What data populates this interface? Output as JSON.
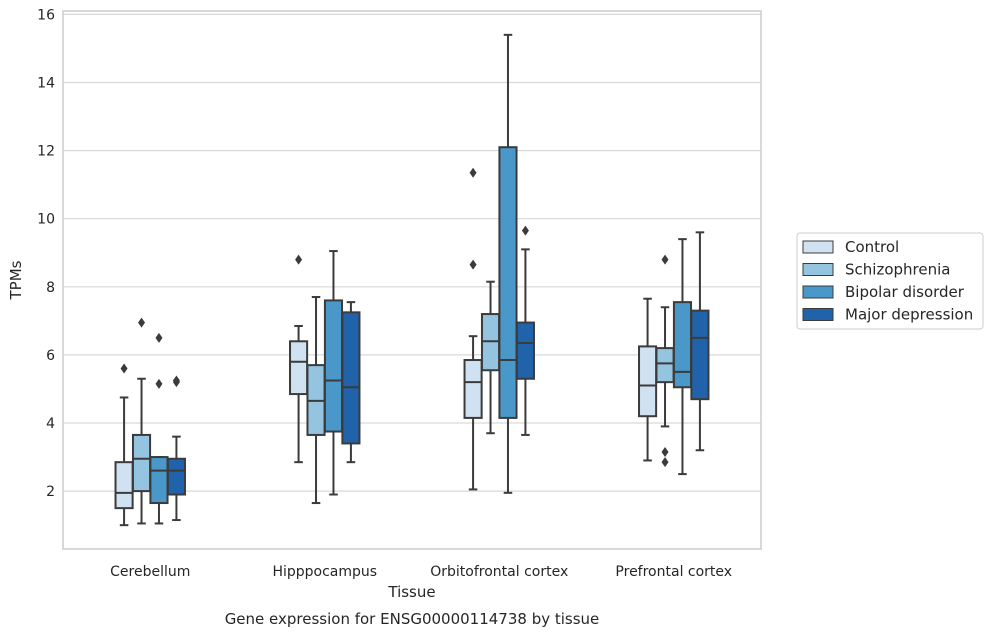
{
  "chart_data": {
    "type": "box",
    "title": "",
    "caption": "Gene expression for ENSG00000114738 by tissue",
    "xlabel": "Tissue",
    "ylabel": "TPMs",
    "ylim": [
      0.3,
      16.1
    ],
    "yticks": [
      2,
      4,
      6,
      8,
      10,
      12,
      14,
      16
    ],
    "grid": "horizontal",
    "legend_position": "right",
    "categories": [
      "Cerebellum",
      "Hipppocampus",
      "Orbitofrontal cortex",
      "Prefrontal cortex"
    ],
    "series": [
      {
        "name": "Control",
        "color": "#d0e1f2",
        "boxes": [
          {
            "whislo": 1.0,
            "q1": 1.5,
            "med": 1.95,
            "q3": 2.85,
            "whishi": 4.75,
            "fliers": [
              5.6
            ]
          },
          {
            "whislo": 2.85,
            "q1": 4.85,
            "med": 5.8,
            "q3": 6.4,
            "whishi": 6.85,
            "fliers": [
              8.8
            ]
          },
          {
            "whislo": 2.05,
            "q1": 4.15,
            "med": 5.2,
            "q3": 5.85,
            "whishi": 6.55,
            "fliers": [
              8.65,
              11.35
            ]
          },
          {
            "whislo": 2.9,
            "q1": 4.2,
            "med": 5.1,
            "q3": 6.25,
            "whishi": 7.65,
            "fliers": []
          }
        ]
      },
      {
        "name": "Schizophrenia",
        "color": "#94c4df",
        "boxes": [
          {
            "whislo": 1.05,
            "q1": 2.0,
            "med": 2.95,
            "q3": 3.65,
            "whishi": 5.3,
            "fliers": [
              6.95
            ]
          },
          {
            "whislo": 1.65,
            "q1": 3.65,
            "med": 4.65,
            "q3": 5.7,
            "whishi": 7.7,
            "fliers": []
          },
          {
            "whislo": 3.7,
            "q1": 5.55,
            "med": 6.4,
            "q3": 7.2,
            "whishi": 8.15,
            "fliers": []
          },
          {
            "whislo": 3.9,
            "q1": 5.2,
            "med": 5.75,
            "q3": 6.2,
            "whishi": 7.4,
            "fliers": [
              8.8,
              3.15,
              2.85
            ]
          }
        ]
      },
      {
        "name": "Bipolar disorder",
        "color": "#4a98c9",
        "boxes": [
          {
            "whislo": 1.05,
            "q1": 1.65,
            "med": 2.6,
            "q3": 3.0,
            "whishi": 3.0,
            "fliers": [
              6.5,
              5.15
            ]
          },
          {
            "whislo": 1.9,
            "q1": 3.75,
            "med": 5.25,
            "q3": 7.6,
            "whishi": 9.05,
            "fliers": []
          },
          {
            "whislo": 1.95,
            "q1": 4.15,
            "med": 5.85,
            "q3": 12.1,
            "whishi": 15.4,
            "fliers": []
          },
          {
            "whislo": 2.5,
            "q1": 5.05,
            "med": 5.5,
            "q3": 7.55,
            "whishi": 9.4,
            "fliers": []
          }
        ]
      },
      {
        "name": "Major depression",
        "color": "#2163aa",
        "boxes": [
          {
            "whislo": 1.15,
            "q1": 1.9,
            "med": 2.6,
            "q3": 2.95,
            "whishi": 3.6,
            "fliers": [
              5.25,
              5.2
            ]
          },
          {
            "whislo": 2.85,
            "q1": 3.4,
            "med": 5.05,
            "q3": 7.25,
            "whishi": 7.55,
            "fliers": []
          },
          {
            "whislo": 3.65,
            "q1": 5.3,
            "med": 6.35,
            "q3": 6.95,
            "whishi": 9.1,
            "fliers": [
              9.65
            ]
          },
          {
            "whislo": 3.2,
            "q1": 4.7,
            "med": 6.5,
            "q3": 7.3,
            "whishi": 9.6,
            "fliers": []
          }
        ]
      }
    ]
  }
}
